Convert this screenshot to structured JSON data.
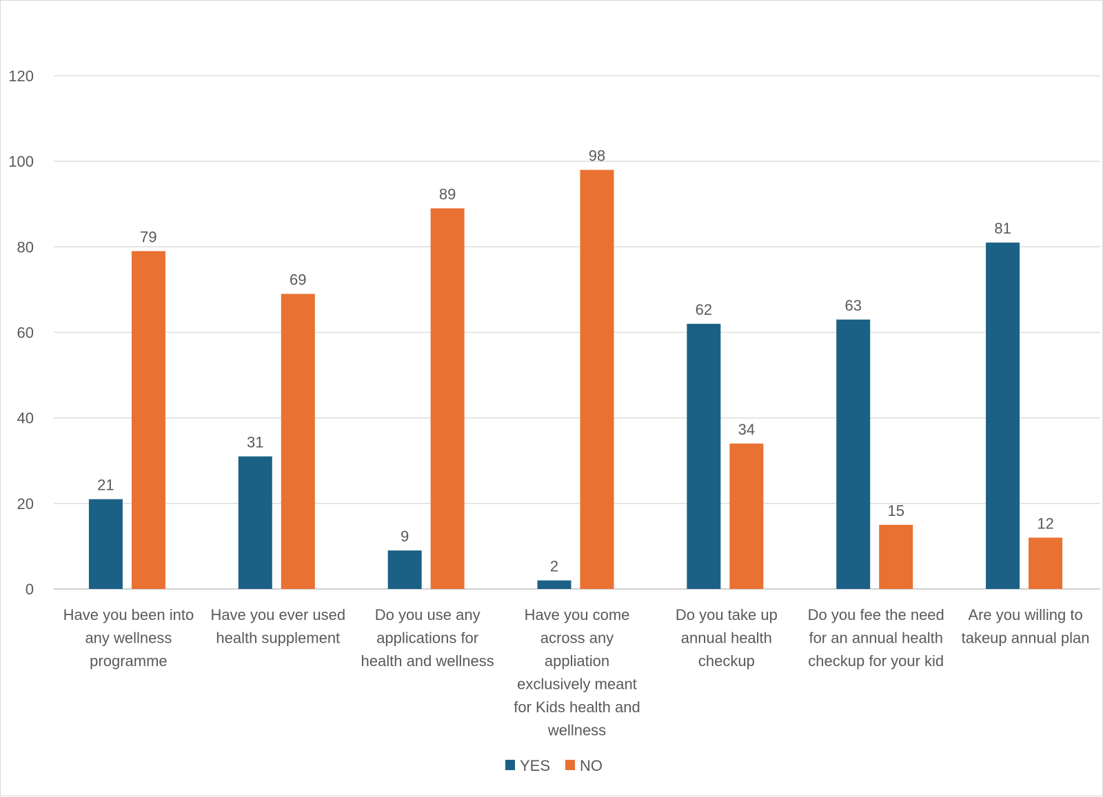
{
  "chart_data": {
    "type": "bar",
    "title": "",
    "xlabel": "",
    "ylabel": "",
    "ylim": [
      0,
      120
    ],
    "yticks": [
      0,
      20,
      40,
      60,
      80,
      100,
      120
    ],
    "grid": true,
    "legend_position": "bottom",
    "categories": [
      "Have you been into any wellness programme",
      "Have you ever used health supplement",
      "Do you use any applications for health and wellness",
      "Have you come across any appliation exclusively meant for Kids health and wellness",
      "Do you take up annual health checkup",
      "Do you fee the need for an annual health checkup for your kid",
      "Are you willing to takeup annual plan"
    ],
    "series": [
      {
        "name": "YES",
        "color": "#1b6185",
        "values": [
          21,
          31,
          9,
          2,
          62,
          63,
          81
        ]
      },
      {
        "name": "NO",
        "color": "#e97132",
        "values": [
          79,
          69,
          89,
          98,
          34,
          15,
          12
        ]
      }
    ],
    "data_labels": true
  }
}
